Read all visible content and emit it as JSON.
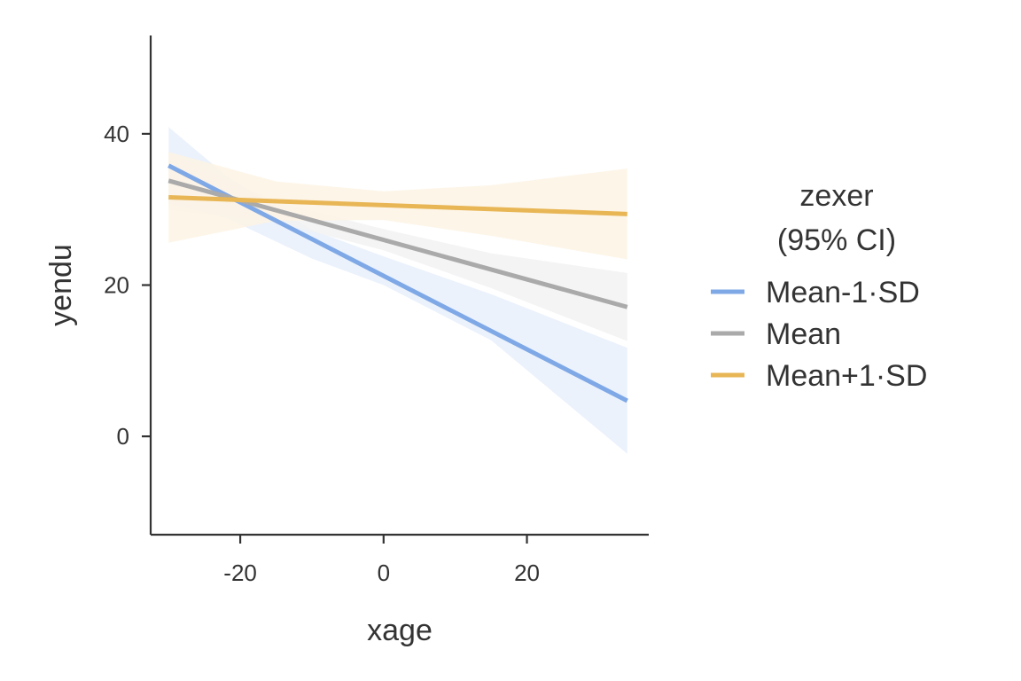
{
  "chart_data": {
    "type": "line",
    "xlabel": "xage",
    "ylabel": "yendu",
    "xlim": [
      -32.5,
      37
    ],
    "ylim": [
      -13,
      53
    ],
    "x_ticks": [
      -20,
      0,
      20
    ],
    "x_tick_labels": [
      "-20",
      "0",
      "20"
    ],
    "y_ticks": [
      0,
      20,
      40
    ],
    "y_tick_labels": [
      "0",
      "20",
      "40"
    ],
    "grid": false,
    "legend": {
      "title_lines": [
        "zexer",
        "(95% CI)"
      ],
      "placement": "right"
    },
    "series": [
      {
        "name": "Mean-1·SD",
        "color": "#7fa8e6",
        "band_color": "#e8f0fb",
        "x": [
          -30,
          34
        ],
        "y": [
          35.8,
          4.7
        ],
        "ci": [
          {
            "x": -30,
            "lower": 30.7,
            "upper": 40.9
          },
          {
            "x": -22,
            "lower": 28.9,
            "upper": 34.5
          },
          {
            "x": -10,
            "lower": 23.5,
            "upper": 27.3
          },
          {
            "x": 0,
            "lower": 20.0,
            "upper": 23.8
          },
          {
            "x": 15,
            "lower": 12.7,
            "upper": 18.8
          },
          {
            "x": 34,
            "lower": -2.3,
            "upper": 11.7
          }
        ]
      },
      {
        "name": "Mean",
        "color": "#aaaaaa",
        "band_color": "#f2f2f2",
        "x": [
          -30,
          34
        ],
        "y": [
          33.8,
          17.1
        ],
        "ci": [
          {
            "x": -30,
            "lower": 30.0,
            "upper": 37.6
          },
          {
            "x": -15,
            "lower": 28.3,
            "upper": 31.0
          },
          {
            "x": 0,
            "lower": 24.6,
            "upper": 27.4
          },
          {
            "x": 15,
            "lower": 19.6,
            "upper": 24.2
          },
          {
            "x": 34,
            "lower": 12.6,
            "upper": 21.6
          }
        ]
      },
      {
        "name": "Mean+1·SD",
        "color": "#e8b655",
        "band_color": "#fdf3e4",
        "x": [
          -30,
          34
        ],
        "y": [
          31.6,
          29.4
        ],
        "ci": [
          {
            "x": -30,
            "lower": 25.6,
            "upper": 37.6
          },
          {
            "x": -15,
            "lower": 28.5,
            "upper": 33.7
          },
          {
            "x": 0,
            "lower": 28.6,
            "upper": 32.4
          },
          {
            "x": 15,
            "lower": 26.5,
            "upper": 33.2
          },
          {
            "x": 34,
            "lower": 23.4,
            "upper": 35.4
          }
        ]
      }
    ]
  }
}
